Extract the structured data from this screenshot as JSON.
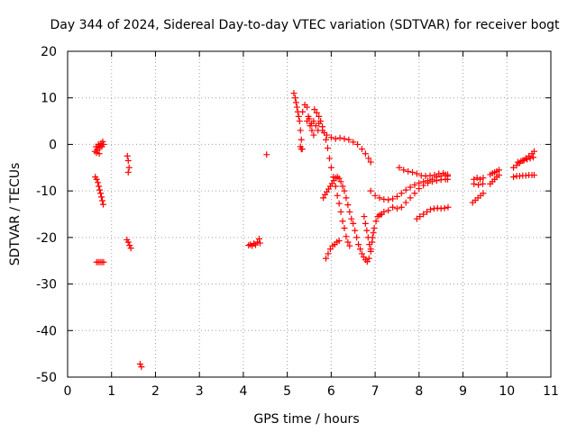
{
  "chart_data": {
    "type": "scatter",
    "title": "Day 344 of 2024, Sidereal Day-to-day VTEC variation (SDTVAR) for receiver bogt",
    "xlabel": "GPS time / hours",
    "ylabel": "SDTVAR / TECUs",
    "xlim": [
      0,
      11
    ],
    "ylim": [
      -50,
      20
    ],
    "xticks": [
      0,
      1,
      2,
      3,
      4,
      5,
      6,
      7,
      8,
      9,
      10,
      11
    ],
    "yticks": [
      20,
      10,
      0,
      -10,
      -20,
      -30,
      -40,
      -50
    ],
    "grid": true,
    "marker": "+",
    "color": "#ff0000",
    "series": [
      {
        "name": "arc-01",
        "points": [
          [
            0.62,
            -1.5
          ],
          [
            0.65,
            -0.5
          ],
          [
            0.68,
            -1.2
          ],
          [
            0.7,
            0.0
          ],
          [
            0.72,
            -0.8
          ],
          [
            0.74,
            -0.3
          ],
          [
            0.76,
            0.2
          ],
          [
            0.78,
            -0.5
          ],
          [
            0.8,
            0.6
          ],
          [
            0.82,
            0.0
          ],
          [
            0.72,
            -2.0
          ],
          [
            0.66,
            -1.8
          ]
        ]
      },
      {
        "name": "arc-02",
        "points": [
          [
            0.63,
            -7.0
          ],
          [
            0.66,
            -7.5
          ],
          [
            0.69,
            -8.2
          ],
          [
            0.71,
            -9.0
          ],
          [
            0.73,
            -9.8
          ],
          [
            0.75,
            -10.5
          ],
          [
            0.77,
            -11.3
          ],
          [
            0.79,
            -12.1
          ],
          [
            0.81,
            -12.9
          ]
        ]
      },
      {
        "name": "arc-03",
        "points": [
          [
            0.66,
            -25.3
          ],
          [
            0.7,
            -25.3
          ],
          [
            0.74,
            -25.3
          ],
          [
            0.78,
            -25.3
          ],
          [
            0.82,
            -25.3
          ]
        ]
      },
      {
        "name": "arc-04",
        "points": [
          [
            1.36,
            -2.5
          ],
          [
            1.38,
            -3.5
          ],
          [
            1.4,
            -5.0
          ],
          [
            1.38,
            -6.0
          ]
        ]
      },
      {
        "name": "arc-05",
        "points": [
          [
            1.35,
            -20.5
          ],
          [
            1.38,
            -21.0
          ],
          [
            1.41,
            -21.7
          ],
          [
            1.44,
            -22.3
          ]
        ]
      },
      {
        "name": "arc-06",
        "points": [
          [
            1.65,
            -47.2
          ],
          [
            1.68,
            -47.8
          ]
        ]
      },
      {
        "name": "arc-07",
        "points": [
          [
            4.12,
            -21.7
          ],
          [
            4.16,
            -21.5
          ],
          [
            4.2,
            -21.8
          ],
          [
            4.24,
            -21.3
          ],
          [
            4.28,
            -21.6
          ],
          [
            4.32,
            -21.0
          ],
          [
            4.36,
            -20.3
          ],
          [
            4.38,
            -21.2
          ]
        ]
      },
      {
        "name": "arc-08",
        "points": [
          [
            4.53,
            -2.2
          ]
        ]
      },
      {
        "name": "arc-09",
        "points": [
          [
            5.15,
            11.0
          ],
          [
            5.18,
            10.0
          ],
          [
            5.2,
            9.0
          ],
          [
            5.22,
            8.0
          ],
          [
            5.24,
            7.0
          ],
          [
            5.26,
            6.0
          ],
          [
            5.28,
            5.0
          ],
          [
            5.3,
            3.0
          ],
          [
            5.32,
            1.0
          ],
          [
            5.34,
            -1.0
          ]
        ]
      },
      {
        "name": "arc-10",
        "points": [
          [
            5.3,
            -0.5
          ],
          [
            5.32,
            -1.0
          ]
        ]
      },
      {
        "name": "arc-11",
        "points": [
          [
            5.35,
            7.0
          ],
          [
            5.4,
            8.5
          ],
          [
            5.45,
            8.0
          ],
          [
            5.48,
            6.0
          ],
          [
            5.52,
            4.0
          ],
          [
            5.56,
            3.0
          ],
          [
            5.6,
            2.0
          ],
          [
            5.45,
            5.0
          ],
          [
            5.5,
            5.5
          ],
          [
            5.55,
            4.5
          ],
          [
            5.6,
            5.0
          ],
          [
            5.65,
            4.0
          ],
          [
            5.7,
            3.0
          ]
        ]
      },
      {
        "name": "arc-12",
        "points": [
          [
            5.62,
            7.5
          ],
          [
            5.67,
            6.8
          ],
          [
            5.72,
            6.0
          ],
          [
            5.76,
            5.0
          ],
          [
            5.8,
            3.8
          ],
          [
            5.84,
            2.5
          ],
          [
            5.88,
            1.0
          ],
          [
            5.92,
            -0.8
          ],
          [
            5.96,
            -3.0
          ],
          [
            6.0,
            -5.0
          ],
          [
            6.05,
            -7.0
          ],
          [
            6.1,
            -9.0
          ],
          [
            6.14,
            -11.0
          ],
          [
            6.18,
            -12.7
          ],
          [
            6.22,
            -14.5
          ],
          [
            6.26,
            -16.5
          ],
          [
            6.3,
            -18.0
          ],
          [
            6.34,
            -19.8
          ],
          [
            6.38,
            -21.0
          ],
          [
            6.42,
            -21.8
          ]
        ]
      },
      {
        "name": "arc-13",
        "points": [
          [
            5.72,
            4.5
          ],
          [
            5.8,
            3.0
          ],
          [
            5.9,
            2.0
          ],
          [
            6.0,
            1.5
          ],
          [
            6.1,
            1.2
          ],
          [
            6.2,
            1.4
          ],
          [
            6.3,
            1.2
          ],
          [
            6.4,
            1.0
          ],
          [
            6.5,
            0.5
          ],
          [
            6.6,
            0.0
          ],
          [
            6.7,
            -1.0
          ],
          [
            6.78,
            -2.0
          ],
          [
            6.85,
            -3.0
          ],
          [
            6.9,
            -3.8
          ]
        ]
      },
      {
        "name": "arc-14",
        "points": [
          [
            5.88,
            -24.5
          ],
          [
            5.93,
            -23.5
          ],
          [
            5.98,
            -22.5
          ],
          [
            6.03,
            -21.8
          ],
          [
            6.08,
            -21.5
          ],
          [
            6.13,
            -21.0
          ],
          [
            6.18,
            -20.7
          ]
        ]
      },
      {
        "name": "arc-15",
        "points": [
          [
            5.82,
            -11.5
          ],
          [
            5.86,
            -10.8
          ],
          [
            5.9,
            -10.2
          ],
          [
            5.94,
            -9.6
          ],
          [
            5.98,
            -9.0
          ],
          [
            6.02,
            -8.4
          ],
          [
            6.06,
            -7.8
          ],
          [
            6.1,
            -7.2
          ],
          [
            6.14,
            -7.0
          ],
          [
            6.18,
            -7.3
          ],
          [
            6.22,
            -8.0
          ],
          [
            6.26,
            -9.0
          ],
          [
            6.3,
            -10.0
          ],
          [
            6.34,
            -11.5
          ],
          [
            6.38,
            -13.0
          ],
          [
            6.42,
            -14.5
          ],
          [
            6.46,
            -16.0
          ],
          [
            6.5,
            -17.0
          ],
          [
            6.54,
            -18.5
          ],
          [
            6.58,
            -20.0
          ],
          [
            6.62,
            -21.5
          ],
          [
            6.66,
            -22.5
          ],
          [
            6.7,
            -23.5
          ],
          [
            6.74,
            -24.2
          ],
          [
            6.78,
            -24.8
          ],
          [
            6.82,
            -25.2
          ],
          [
            6.86,
            -24.5
          ],
          [
            6.9,
            -22.5
          ],
          [
            6.94,
            -20.0
          ],
          [
            6.98,
            -18.0
          ],
          [
            7.02,
            -16.5
          ],
          [
            7.06,
            -15.5
          ],
          [
            7.1,
            -15.2
          ],
          [
            7.14,
            -15.0
          ]
        ]
      },
      {
        "name": "arc-16",
        "points": [
          [
            6.75,
            -15.5
          ],
          [
            6.78,
            -17.0
          ],
          [
            6.81,
            -18.5
          ],
          [
            6.84,
            -20.0
          ],
          [
            6.87,
            -21.5
          ],
          [
            6.9,
            -23.0
          ],
          [
            6.93,
            -21.0
          ],
          [
            6.96,
            -19.0
          ]
        ]
      },
      {
        "name": "arc-17",
        "points": [
          [
            7.15,
            -15.0
          ],
          [
            7.2,
            -14.5
          ],
          [
            7.3,
            -14.2
          ],
          [
            7.4,
            -13.5
          ],
          [
            7.5,
            -13.8
          ],
          [
            7.6,
            -13.5
          ],
          [
            7.7,
            -12.5
          ],
          [
            7.8,
            -11.5
          ],
          [
            7.9,
            -10.5
          ],
          [
            8.0,
            -9.5
          ],
          [
            8.1,
            -8.8
          ],
          [
            8.2,
            -8.3
          ],
          [
            8.3,
            -8.0
          ],
          [
            8.4,
            -7.8
          ],
          [
            8.5,
            -7.6
          ],
          [
            8.6,
            -7.5
          ],
          [
            8.65,
            -7.5
          ]
        ]
      },
      {
        "name": "arc-18",
        "points": [
          [
            6.9,
            -10.0
          ],
          [
            7.0,
            -11.0
          ],
          [
            7.1,
            -11.5
          ],
          [
            7.2,
            -11.8
          ],
          [
            7.3,
            -11.9
          ],
          [
            7.4,
            -11.7
          ],
          [
            7.5,
            -11.2
          ],
          [
            7.6,
            -10.5
          ],
          [
            7.7,
            -9.8
          ],
          [
            7.8,
            -9.2
          ],
          [
            7.9,
            -8.7
          ],
          [
            8.0,
            -8.3
          ],
          [
            8.1,
            -8.0
          ],
          [
            8.2,
            -7.8
          ],
          [
            8.3,
            -7.5
          ],
          [
            8.4,
            -7.0
          ],
          [
            8.5,
            -6.8
          ],
          [
            8.6,
            -6.5
          ],
          [
            8.65,
            -6.8
          ]
        ]
      },
      {
        "name": "arc-19",
        "points": [
          [
            7.55,
            -5.0
          ],
          [
            7.65,
            -5.5
          ],
          [
            7.75,
            -5.8
          ],
          [
            7.85,
            -6.0
          ],
          [
            7.95,
            -6.3
          ],
          [
            8.05,
            -6.7
          ],
          [
            8.15,
            -6.8
          ],
          [
            8.25,
            -6.7
          ],
          [
            8.35,
            -6.6
          ],
          [
            8.45,
            -6.3
          ],
          [
            8.55,
            -6.2
          ],
          [
            8.65,
            -6.5
          ]
        ]
      },
      {
        "name": "arc-20",
        "points": [
          [
            7.95,
            -16.0
          ],
          [
            8.02,
            -15.5
          ],
          [
            8.1,
            -15.0
          ],
          [
            8.18,
            -14.5
          ],
          [
            8.26,
            -14.0
          ],
          [
            8.34,
            -13.8
          ],
          [
            8.42,
            -13.7
          ],
          [
            8.5,
            -13.8
          ],
          [
            8.58,
            -13.7
          ],
          [
            8.66,
            -13.5
          ]
        ]
      },
      {
        "name": "arc-21",
        "points": [
          [
            9.25,
            -7.5
          ],
          [
            9.32,
            -7.2
          ],
          [
            9.39,
            -7.5
          ],
          [
            9.46,
            -7.2
          ],
          [
            9.25,
            -8.5
          ],
          [
            9.35,
            -8.7
          ],
          [
            9.45,
            -8.5
          ]
        ]
      },
      {
        "name": "arc-22",
        "points": [
          [
            9.22,
            -12.5
          ],
          [
            9.28,
            -12.0
          ],
          [
            9.34,
            -11.5
          ],
          [
            9.4,
            -11.0
          ],
          [
            9.46,
            -10.5
          ]
        ]
      },
      {
        "name": "arc-23",
        "points": [
          [
            9.62,
            -8.5
          ],
          [
            9.67,
            -8.0
          ],
          [
            9.72,
            -7.5
          ],
          [
            9.77,
            -7.0
          ],
          [
            9.82,
            -6.6
          ]
        ]
      },
      {
        "name": "arc-24",
        "points": [
          [
            9.62,
            -6.5
          ],
          [
            9.67,
            -6.2
          ],
          [
            9.72,
            -6.0
          ],
          [
            9.77,
            -5.8
          ],
          [
            9.82,
            -5.5
          ]
        ]
      },
      {
        "name": "arc-25",
        "points": [
          [
            10.15,
            -5.0
          ],
          [
            10.22,
            -4.5
          ],
          [
            10.29,
            -4.0
          ],
          [
            10.36,
            -3.5
          ],
          [
            10.43,
            -3.0
          ],
          [
            10.5,
            -2.5
          ],
          [
            10.57,
            -2.0
          ],
          [
            10.62,
            -1.5
          ]
        ]
      },
      {
        "name": "arc-26",
        "points": [
          [
            10.25,
            -3.8
          ],
          [
            10.32,
            -3.6
          ],
          [
            10.39,
            -3.4
          ],
          [
            10.46,
            -3.2
          ],
          [
            10.53,
            -3.0
          ],
          [
            10.6,
            -2.8
          ]
        ]
      },
      {
        "name": "arc-27",
        "points": [
          [
            10.15,
            -7.0
          ],
          [
            10.22,
            -6.8
          ],
          [
            10.29,
            -6.8
          ],
          [
            10.36,
            -6.7
          ],
          [
            10.43,
            -6.7
          ],
          [
            10.5,
            -6.6
          ],
          [
            10.57,
            -6.6
          ],
          [
            10.62,
            -6.6
          ]
        ]
      }
    ]
  }
}
